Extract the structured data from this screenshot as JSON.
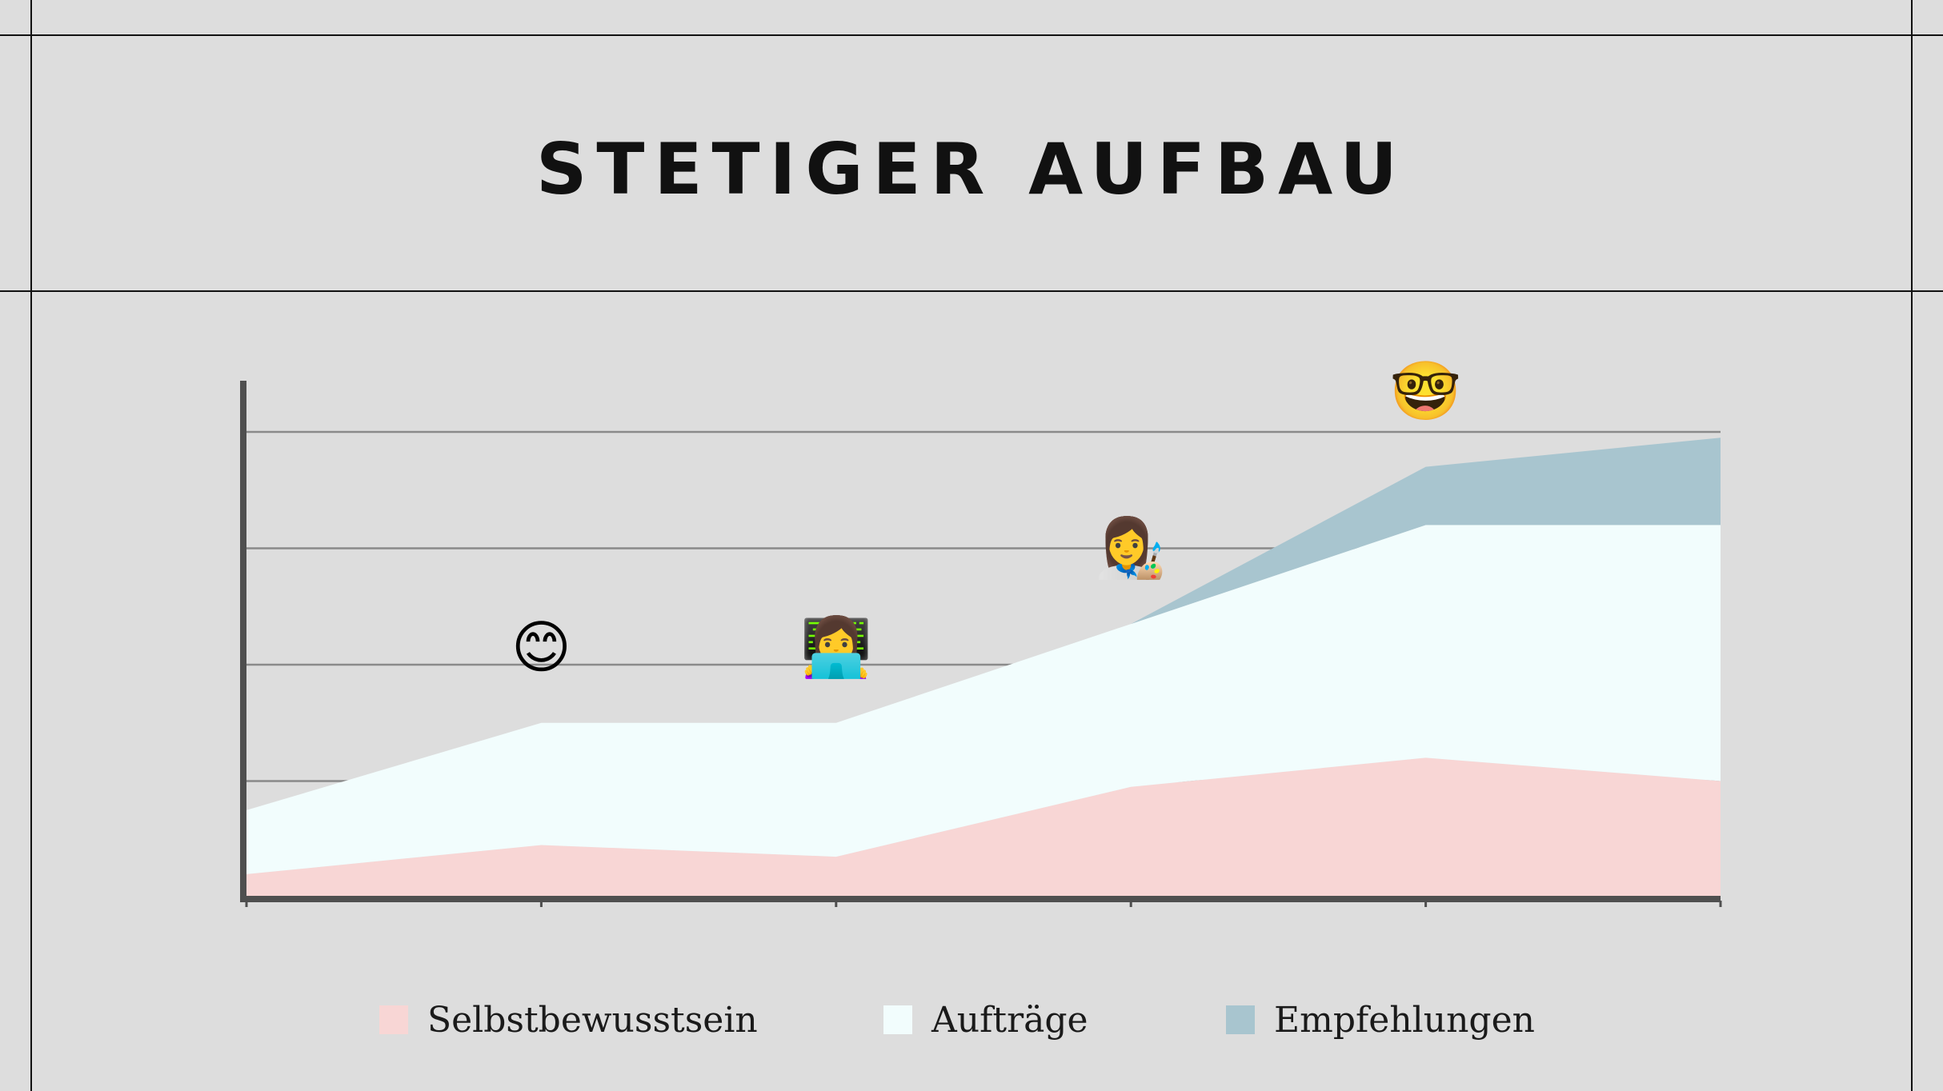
{
  "title": "STETIGER AUFBAU",
  "chart_data": {
    "type": "area",
    "stacked": true,
    "categories": [
      "",
      "",
      "",
      "",
      "",
      ""
    ],
    "ylim": [
      0,
      4
    ],
    "grid": true,
    "legend_position": "bottom",
    "series": [
      {
        "name": "Selbstbewusstsein",
        "color": "#f8d6d5",
        "values": [
          0.2,
          0.45,
          0.35,
          0.95,
          1.2,
          1.0
        ]
      },
      {
        "name": "Aufträge",
        "color": "#f2fdfd",
        "values": [
          0.55,
          1.05,
          1.15,
          1.4,
          2.0,
          2.2
        ]
      },
      {
        "name": "Empfehlungen",
        "color": "#a8c5cf",
        "values": [
          0,
          0,
          0,
          0,
          0.5,
          0.75
        ]
      }
    ],
    "annotations": [
      {
        "emoji": "😊",
        "category_index": 1,
        "icon": "smiling-face-icon"
      },
      {
        "emoji": "👩‍💻",
        "category_index": 2,
        "icon": "woman-technologist-icon"
      },
      {
        "emoji": "👩‍🎨",
        "category_index": 3,
        "icon": "woman-artist-icon"
      },
      {
        "emoji": "🤓",
        "category_index": 4,
        "icon": "nerd-face-icon"
      }
    ]
  }
}
